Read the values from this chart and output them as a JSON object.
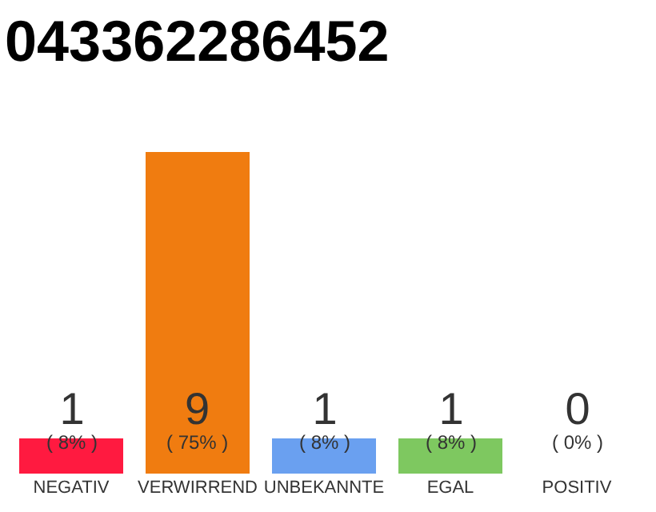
{
  "chart_data": {
    "type": "bar",
    "title": "043362286452",
    "categories": [
      "NEGATIV",
      "VERWIRREND",
      "UNBEKANNTE",
      "EGAL",
      "POSITIV"
    ],
    "values": [
      1,
      9,
      1,
      1,
      0
    ],
    "colors": [
      "#ff1a40",
      "#f07c10",
      "#6aa0f0",
      "#7ec860",
      "#22aa44"
    ],
    "value_labels": [
      "1\n( 8% )",
      "9\n( 75% )",
      "1\n( 8% )",
      "1\n( 8% )",
      "0\n( 0% )"
    ]
  }
}
